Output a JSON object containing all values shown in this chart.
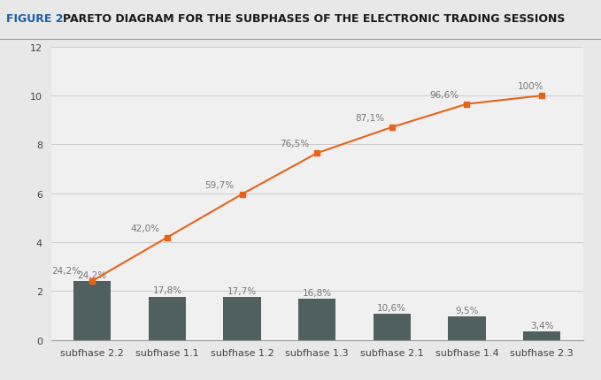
{
  "categories": [
    "subfhase 2.2",
    "subfhase 1.1",
    "subfhase 1.2",
    "subfhase 1.3",
    "subfhase 2.1",
    "subfhase 1.4",
    "subfhase 2.3"
  ],
  "bar_values": [
    2.42,
    1.78,
    1.77,
    1.68,
    1.06,
    0.95,
    0.34
  ],
  "bar_labels": [
    "24,2%",
    "17,8%",
    "17,7%",
    "16,8%",
    "10,6%",
    "9,5%",
    "3,4%"
  ],
  "cumulative_values": [
    2.42,
    4.2,
    5.97,
    7.65,
    8.71,
    9.66,
    10.0
  ],
  "cumulative_labels": [
    "24,2%",
    "42,0%",
    "59,7%",
    "76,5%",
    "87,1%",
    "96,6%",
    "100%"
  ],
  "bar_color": "#506060",
  "line_color": "#e8621a",
  "marker_color": "#e8621a",
  "outer_bg_color": "#e8e8e8",
  "plot_bg_color": "#f0f0f0",
  "ylim": [
    0,
    12
  ],
  "yticks": [
    0,
    2,
    4,
    6,
    8,
    10,
    12
  ],
  "title_fig": "FIGURE 2",
  "title_main": "    PARETO DIAGRAM FOR THE SUBPHASES OF THE ELECTRONIC TRADING SESSIONS",
  "bar_label_fontsize": 7.5,
  "cumulative_label_fontsize": 7.5,
  "axis_label_fontsize": 8,
  "title_fontsize": 9.0,
  "fig_label_color": "#1a5fa8",
  "title_color": "#1a1a1a",
  "label_color": "#777777",
  "grid_color": "#cccccc"
}
